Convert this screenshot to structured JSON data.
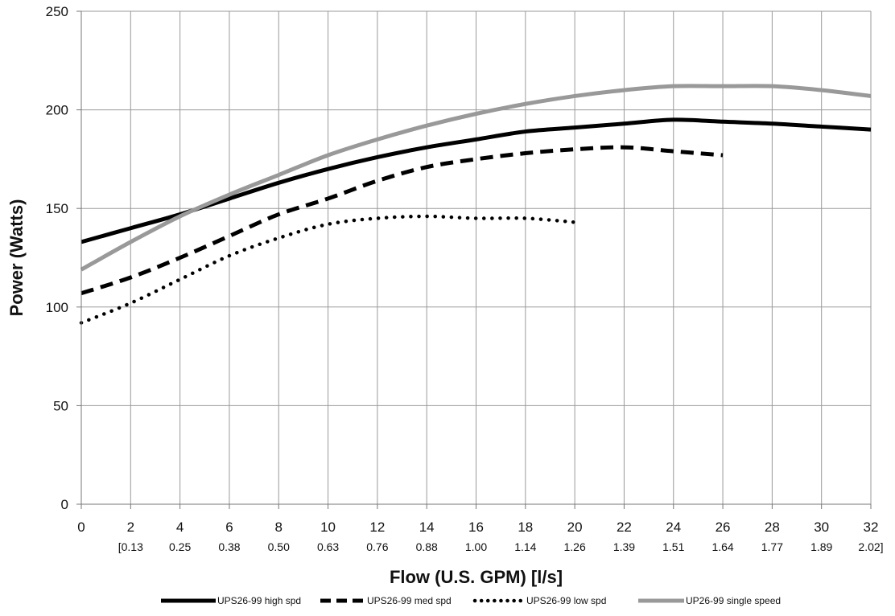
{
  "chart_data": {
    "type": "line",
    "title": "",
    "xlabel": "Flow (U.S. GPM) [l/s]",
    "ylabel": "Power (Watts)",
    "xlim": [
      0,
      32
    ],
    "ylim": [
      0,
      250
    ],
    "x_ticks": [
      "0",
      "2",
      "4",
      "6",
      "8",
      "10",
      "12",
      "14",
      "16",
      "18",
      "20",
      "22",
      "24",
      "26",
      "28",
      "30",
      "32"
    ],
    "x_ticks_secondary": [
      "",
      "[0.13",
      "0.25",
      "0.38",
      "0.50",
      "0.63",
      "0.76",
      "0.88",
      "1.00",
      "1.14",
      "1.26",
      "1.39",
      "1.51",
      "1.64",
      "1.77",
      "1.89",
      "2.02]"
    ],
    "y_ticks": [
      "0",
      "50",
      "100",
      "150",
      "200",
      "250"
    ],
    "grid": true,
    "legend_position": "bottom",
    "series": [
      {
        "name": "UPS26-99 high spd",
        "color": "#000000",
        "style": "solid",
        "x": [
          0,
          2,
          4,
          6,
          8,
          10,
          12,
          14,
          16,
          18,
          20,
          22,
          24,
          26,
          28,
          30,
          32
        ],
        "values": [
          133,
          140,
          147,
          155,
          163,
          170,
          176,
          181,
          185,
          189,
          191,
          193,
          195,
          194,
          193,
          191.5,
          190
        ]
      },
      {
        "name": "UPS26-99 med spd",
        "color": "#000000",
        "style": "dashed",
        "x": [
          0,
          2,
          4,
          6,
          8,
          10,
          12,
          14,
          16,
          18,
          20,
          22,
          24,
          26
        ],
        "values": [
          107,
          115,
          125,
          136,
          147,
          155,
          164,
          171,
          175,
          178,
          180,
          181,
          179,
          177
        ]
      },
      {
        "name": "UPS26-99 low spd",
        "color": "#000000",
        "style": "dotted",
        "x": [
          0,
          2,
          4,
          6,
          8,
          10,
          12,
          14,
          16,
          18,
          20
        ],
        "values": [
          92,
          102,
          114,
          126,
          135,
          142,
          145,
          146,
          145,
          145,
          143
        ]
      },
      {
        "name": "UP26-99 single speed",
        "color": "#999999",
        "style": "solid",
        "x": [
          0,
          2,
          4,
          6,
          8,
          10,
          12,
          14,
          16,
          18,
          20,
          22,
          24,
          26,
          28,
          30,
          32
        ],
        "values": [
          119,
          133,
          146,
          157,
          167,
          177,
          185,
          192,
          198,
          203,
          207,
          210,
          212,
          212,
          212,
          210,
          207
        ]
      }
    ]
  }
}
